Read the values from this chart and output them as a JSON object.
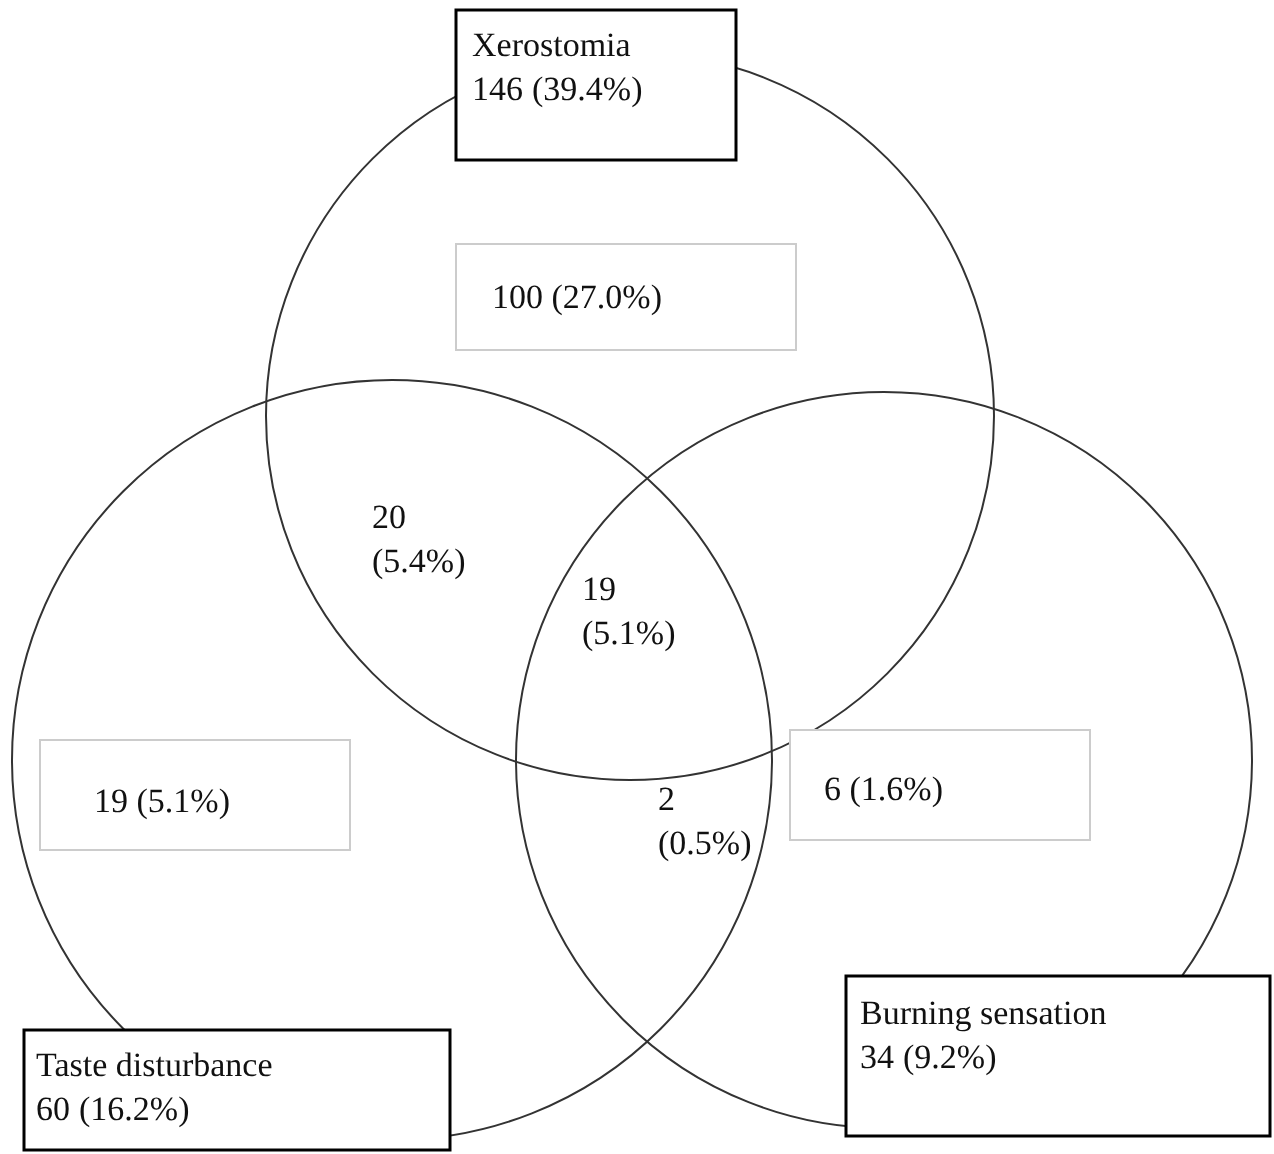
{
  "chart_data": {
    "type": "other",
    "categories": [
      "Xerostomia",
      "Taste disturbance",
      "Burning sensation"
    ],
    "values": [
      146,
      60,
      34
    ],
    "data_labels": true,
    "annotations": [
      "(39.4%)",
      "(16.2%)",
      "(9.2%)",
      "100 (27.0%)",
      "20 (5.4%)",
      "19 (5.1%)",
      "19 (5.1%)",
      "2 (0.5%)",
      "6 (1.6%)"
    ]
  }
}
